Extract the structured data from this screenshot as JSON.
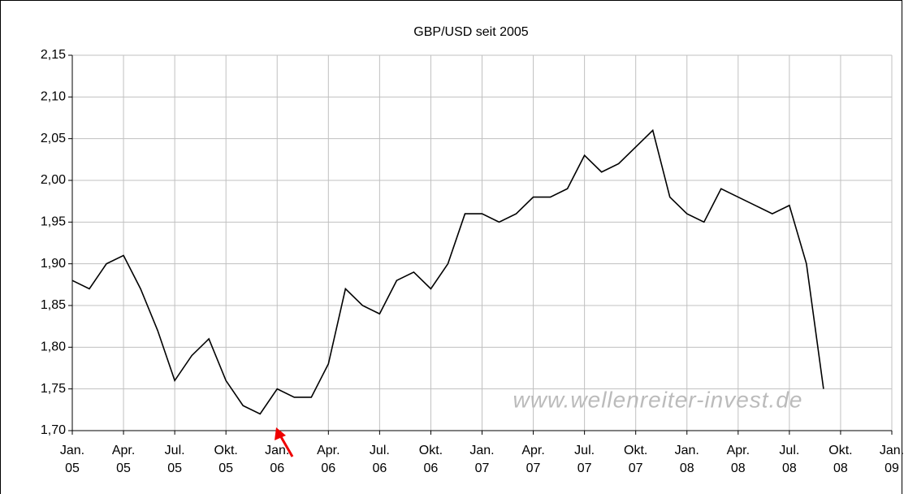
{
  "chart_data": {
    "type": "line",
    "title": "GBP/USD seit 2005",
    "annotations": [
      "www.wellenreiter-invest.de"
    ],
    "x": [
      "2005-01",
      "2005-02",
      "2005-03",
      "2005-04",
      "2005-05",
      "2005-06",
      "2005-07",
      "2005-08",
      "2005-09",
      "2005-10",
      "2005-11",
      "2005-12",
      "2006-01",
      "2006-02",
      "2006-03",
      "2006-04",
      "2006-05",
      "2006-06",
      "2006-07",
      "2006-08",
      "2006-09",
      "2006-10",
      "2006-11",
      "2006-12",
      "2007-01",
      "2007-02",
      "2007-03",
      "2007-04",
      "2007-05",
      "2007-06",
      "2007-07",
      "2007-08",
      "2007-09",
      "2007-10",
      "2007-11",
      "2007-12",
      "2008-01",
      "2008-02",
      "2008-03",
      "2008-04",
      "2008-05",
      "2008-06",
      "2008-07",
      "2008-08",
      "2008-09"
    ],
    "series": [
      {
        "name": "GBP/USD",
        "color": "#000000",
        "values": [
          1.88,
          1.87,
          1.9,
          1.91,
          1.87,
          1.82,
          1.76,
          1.79,
          1.81,
          1.76,
          1.73,
          1.72,
          1.75,
          1.74,
          1.74,
          1.78,
          1.87,
          1.85,
          1.84,
          1.88,
          1.89,
          1.87,
          1.9,
          1.96,
          1.96,
          1.95,
          1.96,
          1.98,
          1.98,
          1.99,
          2.03,
          2.01,
          2.02,
          2.04,
          2.06,
          1.98,
          1.96,
          1.95,
          1.99,
          1.98,
          1.97,
          1.96,
          1.97,
          1.9,
          1.75
        ]
      }
    ],
    "ylim": [
      1.7,
      2.15
    ],
    "yticks": [
      {
        "value": 1.7,
        "label": "1,70"
      },
      {
        "value": 1.75,
        "label": "1,75"
      },
      {
        "value": 1.8,
        "label": "1,80"
      },
      {
        "value": 1.85,
        "label": "1,85"
      },
      {
        "value": 1.9,
        "label": "1,90"
      },
      {
        "value": 1.95,
        "label": "1,95"
      },
      {
        "value": 2.0,
        "label": "2,00"
      },
      {
        "value": 2.05,
        "label": "2,05"
      },
      {
        "value": 2.1,
        "label": "2,10"
      },
      {
        "value": 2.15,
        "label": "2,15"
      }
    ],
    "xlim": [
      "2005-01",
      "2009-01"
    ],
    "xticks": [
      {
        "value": "2005-01",
        "label": "Jan. 05"
      },
      {
        "value": "2005-04",
        "label": "Apr. 05"
      },
      {
        "value": "2005-07",
        "label": "Jul. 05"
      },
      {
        "value": "2005-10",
        "label": "Okt. 05"
      },
      {
        "value": "2006-01",
        "label": "Jan. 06"
      },
      {
        "value": "2006-04",
        "label": "Apr. 06"
      },
      {
        "value": "2006-07",
        "label": "Jul. 06"
      },
      {
        "value": "2006-10",
        "label": "Okt. 06"
      },
      {
        "value": "2007-01",
        "label": "Jan. 07"
      },
      {
        "value": "2007-04",
        "label": "Apr. 07"
      },
      {
        "value": "2007-07",
        "label": "Jul. 07"
      },
      {
        "value": "2007-10",
        "label": "Okt. 07"
      },
      {
        "value": "2008-01",
        "label": "Jan. 08"
      },
      {
        "value": "2008-04",
        "label": "Apr. 08"
      },
      {
        "value": "2008-07",
        "label": "Jul. 08"
      },
      {
        "value": "2008-10",
        "label": "Okt. 08"
      },
      {
        "value": "2009-01",
        "label": "Jan. 09"
      }
    ],
    "grid": true
  }
}
